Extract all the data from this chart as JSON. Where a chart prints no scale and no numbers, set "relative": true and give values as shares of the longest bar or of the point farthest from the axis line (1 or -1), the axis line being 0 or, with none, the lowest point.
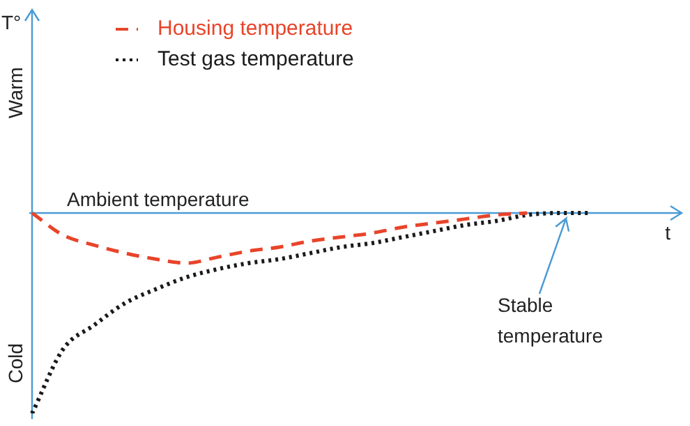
{
  "chart_data": {
    "type": "line",
    "relative": true,
    "xlabel": "t",
    "legend": "top left",
    "categories": [
      null,
      null,
      null,
      null,
      null,
      null,
      null,
      null,
      null,
      null,
      null,
      null,
      null,
      null,
      null,
      null,
      null,
      null,
      null,
      null,
      null,
      null
    ],
    "series": [
      {
        "name": "Housing temperature",
        "color": "#e8442a",
        "line_style": "dashed",
        "values": [
          0,
          -0.11,
          -0.16,
          -0.2,
          -0.23,
          -0.25,
          -0.22,
          -0.19,
          -0.17,
          -0.14,
          -0.12,
          -0.1,
          -0.07,
          -0.05,
          -0.03,
          -0.01,
          0,
          null,
          null,
          null,
          null,
          null
        ]
      },
      {
        "name": "Test gas temperature",
        "color": "#1a1a1a",
        "line_style": "dotted",
        "values": [
          -1,
          -0.68,
          -0.56,
          -0.45,
          -0.38,
          -0.32,
          -0.28,
          -0.25,
          -0.23,
          -0.2,
          -0.17,
          -0.15,
          -0.12,
          -0.09,
          -0.06,
          -0.04,
          -0.01,
          0,
          0,
          null,
          null,
          null
        ]
      }
    ],
    "ref_lines": [
      {
        "axis": "y",
        "value": 0,
        "label": "Ambient temperature",
        "color": "#4a9ad4"
      }
    ],
    "annotations": [
      "Warm",
      "Cold",
      "Stable temperature",
      "T°"
    ]
  }
}
